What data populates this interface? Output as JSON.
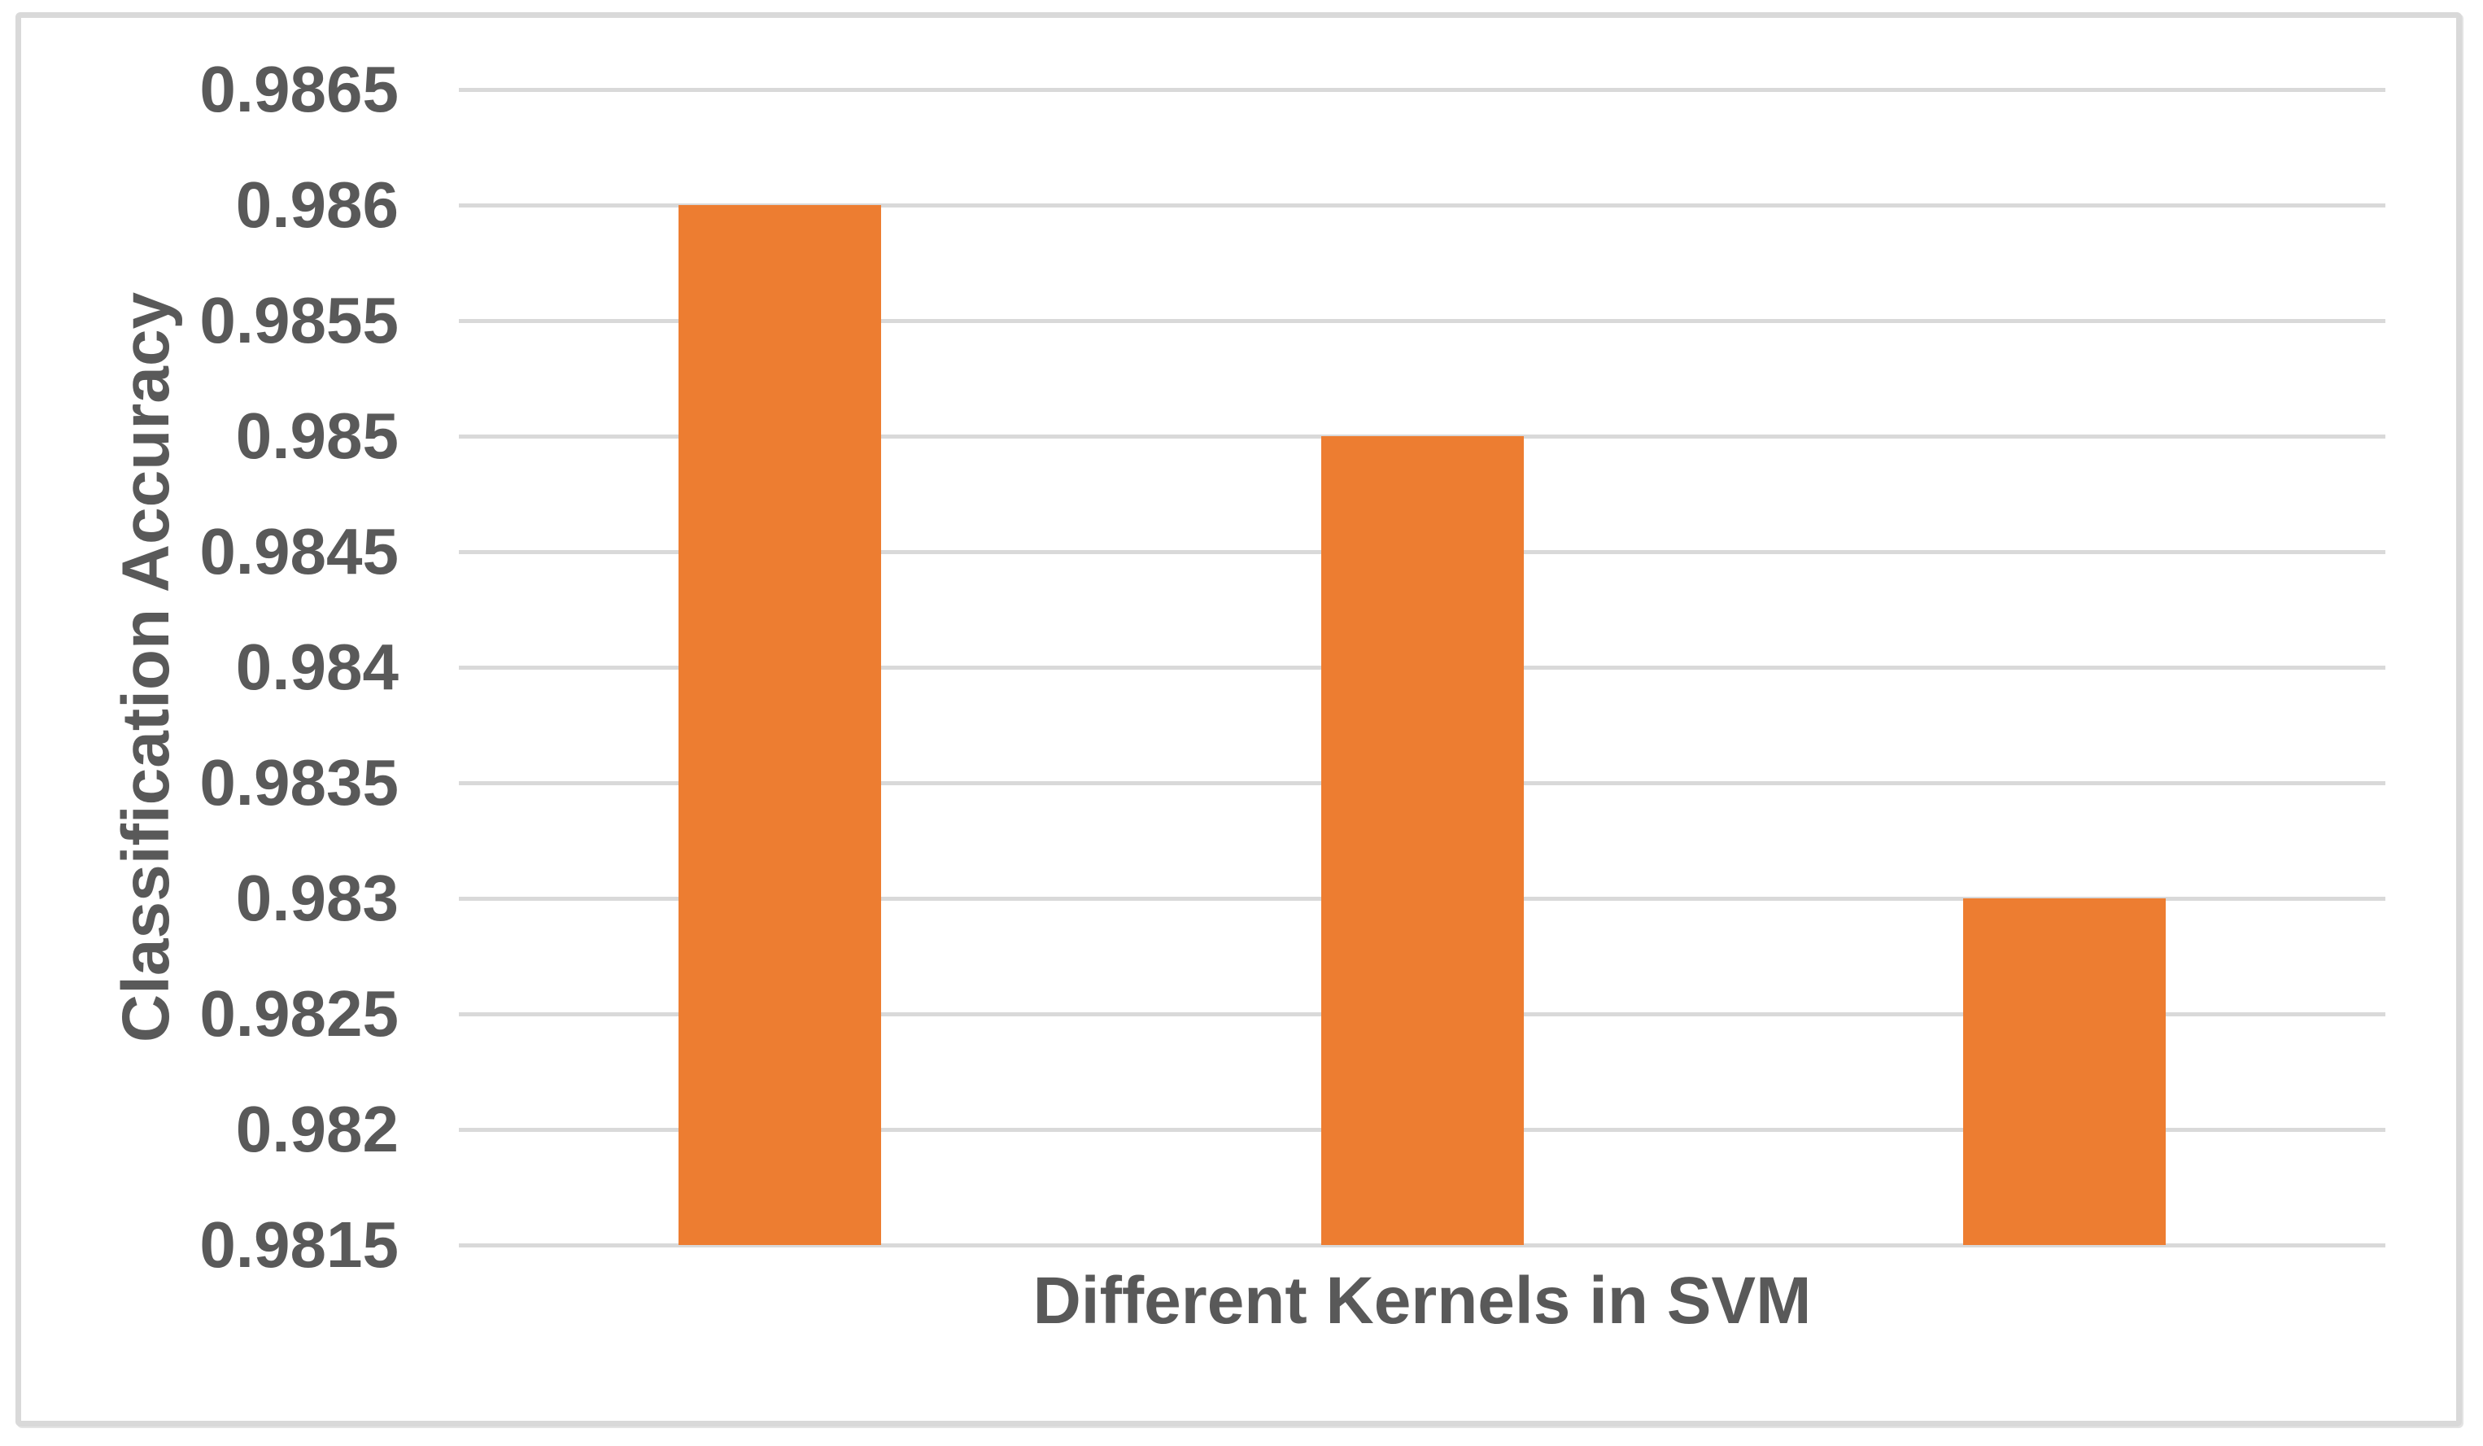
{
  "chart_data": {
    "type": "bar",
    "title": "",
    "xlabel": "Different Kernels in SVM",
    "ylabel": "Classification Accuracy",
    "categories": [
      "",
      "",
      ""
    ],
    "values": [
      0.986,
      0.985,
      0.983
    ],
    "ylim": [
      0.9815,
      0.9865
    ],
    "ytick_step": 0.0005,
    "ytick_labels": [
      "0.9865",
      "0.986",
      "0.9855",
      "0.985",
      "0.9845",
      "0.984",
      "0.9835",
      "0.983",
      "0.9825",
      "0.982",
      "0.9815"
    ],
    "grid": "horizontal-only",
    "legend_position": "none",
    "category_axis_labels_visible": false,
    "bar_color": "#ED7D31",
    "text_color": "#595959",
    "gridline_color": "#D9D9D9",
    "frame_border_color": "#D9D9D9"
  }
}
